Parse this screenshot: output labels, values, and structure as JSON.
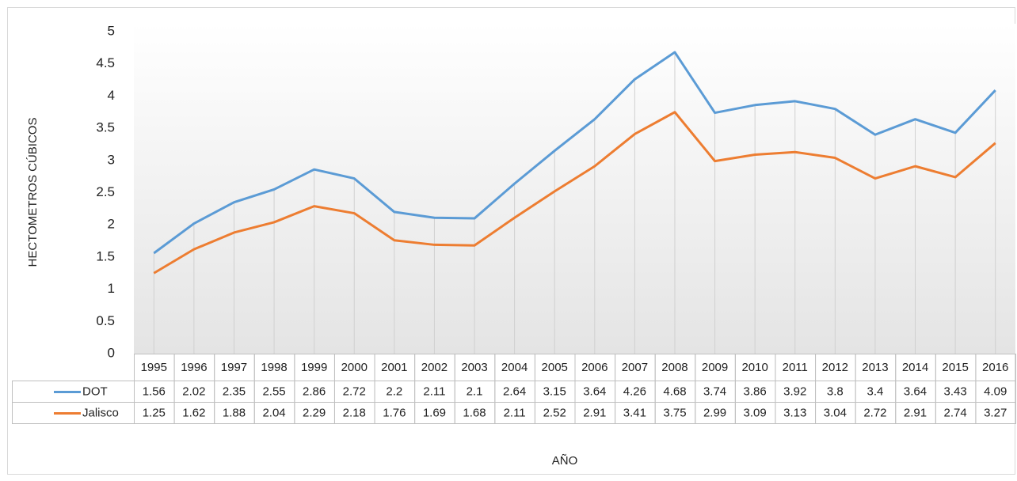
{
  "chart_data": {
    "type": "line",
    "x_label": "AÑO",
    "y_label": "HECTOMETROS CÚBICOS",
    "categories": [
      "1995",
      "1996",
      "1997",
      "1998",
      "1999",
      "2000",
      "2001",
      "2002",
      "2003",
      "2004",
      "2005",
      "2006",
      "2007",
      "2008",
      "2009",
      "2010",
      "2011",
      "2012",
      "2013",
      "2014",
      "2015",
      "2016"
    ],
    "series": [
      {
        "name": "DOT",
        "color": "#5b9bd5",
        "values": [
          1.56,
          2.02,
          2.35,
          2.55,
          2.86,
          2.72,
          2.2,
          2.11,
          2.1,
          2.64,
          3.15,
          3.64,
          4.26,
          4.68,
          3.74,
          3.86,
          3.92,
          3.8,
          3.4,
          3.64,
          3.43,
          4.09
        ]
      },
      {
        "name": "Jalisco",
        "color": "#ed7d31",
        "values": [
          1.25,
          1.62,
          1.88,
          2.04,
          2.29,
          2.18,
          1.76,
          1.69,
          1.68,
          2.11,
          2.52,
          2.91,
          3.41,
          3.75,
          2.99,
          3.09,
          3.13,
          3.04,
          2.72,
          2.91,
          2.74,
          3.27
        ]
      }
    ],
    "ylim": [
      0,
      5
    ],
    "yticks": [
      0,
      0.5,
      1,
      1.5,
      2,
      2.5,
      3,
      3.5,
      4,
      4.5,
      5
    ],
    "data_table": true,
    "drop_lines": true
  }
}
